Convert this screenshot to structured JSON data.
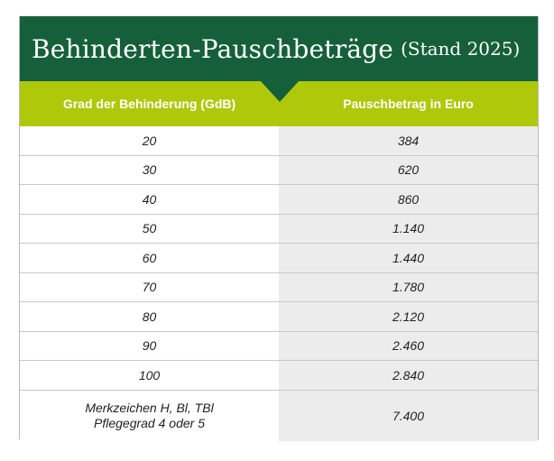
{
  "title": {
    "main": "Behinderten-Pauschbeträge",
    "sub": "(Stand 2025)"
  },
  "table": {
    "headers": [
      "Grad der Behinderung (GdB)",
      "Pauschbetrag in Euro"
    ],
    "rows": [
      {
        "gdb": "20",
        "amount": "384"
      },
      {
        "gdb": "30",
        "amount": "620"
      },
      {
        "gdb": "40",
        "amount": "860"
      },
      {
        "gdb": "50",
        "amount": "1.140"
      },
      {
        "gdb": "60",
        "amount": "1.440"
      },
      {
        "gdb": "70",
        "amount": "1.780"
      },
      {
        "gdb": "80",
        "amount": "2.120"
      },
      {
        "gdb": "90",
        "amount": "2.460"
      },
      {
        "gdb": "100",
        "amount": "2.840"
      }
    ],
    "last_row": {
      "line1": "Merkzeichen H, Bl, TBl",
      "line2": "Pflegegrad 4 oder 5",
      "amount": "7.400"
    }
  },
  "colors": {
    "title_bg": "#15603a",
    "header_bg": "#afc80a",
    "amount_column_bg": "#ececec"
  }
}
